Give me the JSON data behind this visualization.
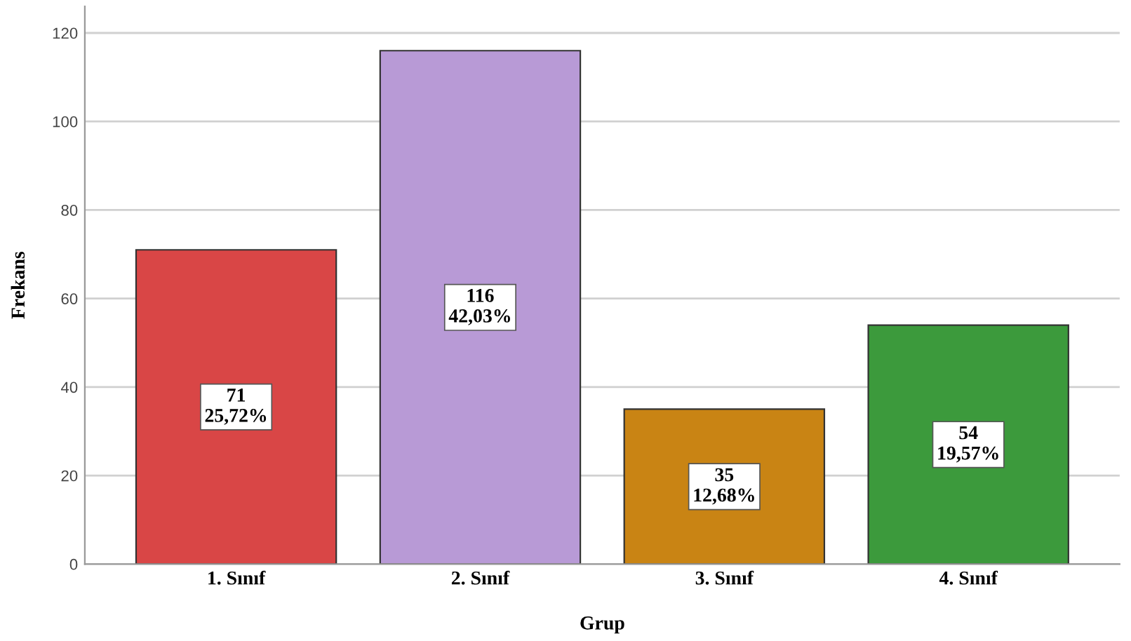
{
  "chart_data": {
    "type": "bar",
    "xlabel": "Grup",
    "ylabel": "Frekans",
    "categories": [
      "1. Sınıf",
      "2. Sınıf",
      "3. Sınıf",
      "4. Sınıf"
    ],
    "values": [
      71,
      116,
      35,
      54
    ],
    "colors": [
      "#d94646",
      "#b89ad6",
      "#c98414",
      "#3c9a3c"
    ],
    "value_labels": [
      "71\n25,72%",
      "116\n42,03%",
      "35\n12,68%",
      "54\n19,57%"
    ],
    "ylim": [
      0,
      126
    ],
    "yticks": [
      0,
      20,
      40,
      60,
      80,
      100,
      120
    ],
    "grid": "y",
    "legend": false
  }
}
